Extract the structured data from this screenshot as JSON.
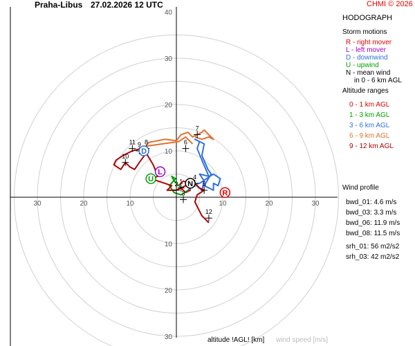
{
  "header": {
    "station": "Praha-Libus",
    "datetime": "27.02.2026 12 UTC",
    "copyright": "CHMI © 2026"
  },
  "panel": {
    "title": "HODOGRAPH",
    "storm_motions_title": "Storm motions",
    "storm_motions": [
      {
        "text": "R - right mover",
        "color": "#e00000"
      },
      {
        "text": "L - left mover",
        "color": "#a000c0"
      },
      {
        "text": "D - downwind",
        "color": "#3070e0"
      },
      {
        "text": "U - upwind",
        "color": "#00a000"
      },
      {
        "text": "N - mean wind",
        "color": "#000000"
      },
      {
        "text": "in 0 - 6 km AGL",
        "color": "#000000"
      }
    ],
    "altitude_title": "Altitude ranges",
    "altitude_ranges": [
      {
        "text": "0 - 1 km AGL",
        "color": "#e00000"
      },
      {
        "text": "1 - 3 km AGL",
        "color": "#00a000"
      },
      {
        "text": "3 - 6 km AGL",
        "color": "#3070e0"
      },
      {
        "text": "6 - 9 km AGL",
        "color": "#e07030"
      },
      {
        "text": "9 - 12 km AGL",
        "color": "#b00000"
      }
    ],
    "wind_profile_title": "Wind profile",
    "wind_profile": [
      "bwd_01: 4.6 m/s",
      "bwd_03: 3.3 m/s",
      "bwd_06: 11.9 m/s",
      "bwd_08: 11.5 m/s",
      "srh_01: 56 m2/s2",
      "srh_03: 42 m2/s2"
    ]
  },
  "footer": {
    "axis_label": "altitude !AGL! [km]",
    "speed_label": "wind speed [m/s]"
  },
  "chart_data": {
    "type": "line",
    "rings": [
      5,
      10,
      15,
      20,
      25,
      30,
      35
    ],
    "tick_labels": {
      "west": [
        "30",
        "20",
        "10"
      ],
      "east": [
        "10",
        "20",
        "30"
      ],
      "north": [
        "10",
        "20",
        "30",
        "40"
      ],
      "south": [
        "10",
        "20",
        "30"
      ]
    },
    "series": [
      {
        "color": "#e00000",
        "points": [
          [
            0.5,
            2.5
          ],
          [
            1.5,
            3.5
          ],
          [
            2.5,
            3.0
          ],
          [
            3.0,
            1.5
          ],
          [
            2.0,
            1.0
          ],
          [
            1.0,
            2.0
          ]
        ]
      },
      {
        "color": "#00a000",
        "points": [
          [
            1.0,
            2.0
          ],
          [
            -0.5,
            3.5
          ],
          [
            -1.0,
            4.5
          ],
          [
            -0.2,
            4.0
          ],
          [
            -1.5,
            2.5
          ],
          [
            -0.5,
            1.0
          ],
          [
            1.0,
            0.5
          ],
          [
            2.5,
            1.5
          ]
        ]
      },
      {
        "color": "#3070e0",
        "points": [
          [
            2.5,
            1.5
          ],
          [
            4.0,
            2.8
          ],
          [
            5.5,
            1.5
          ],
          [
            6.0,
            3.5
          ],
          [
            5.0,
            5.0
          ],
          [
            7.0,
            4.5
          ],
          [
            5.5,
            8.0
          ],
          [
            4.5,
            10.5
          ],
          [
            5.0,
            12.0
          ],
          [
            4.0,
            12.5
          ],
          [
            6.0,
            11.5
          ],
          [
            5.5,
            9.0
          ],
          [
            6.8,
            6.0
          ],
          [
            7.5,
            5.0
          ],
          [
            6.0,
            2.5
          ],
          [
            8.0,
            1.5
          ],
          [
            8.0,
            3.0
          ],
          [
            9.0,
            2.5
          ],
          [
            9.5,
            4.0
          ],
          [
            8.0,
            5.0
          ],
          [
            5.0,
            3.0
          ],
          [
            2.5,
            2.5
          ]
        ]
      },
      {
        "color": "#e07030",
        "points": [
          [
            3.5,
            11.5
          ],
          [
            2.0,
            13.0
          ],
          [
            0.5,
            12.0
          ],
          [
            -3.0,
            11.5
          ],
          [
            -6.5,
            11.0
          ],
          [
            -6.0,
            11.8
          ],
          [
            -2.5,
            12.5
          ],
          [
            0.0,
            12.2
          ],
          [
            1.0,
            13.5
          ],
          [
            2.5,
            14.0
          ],
          [
            3.5,
            13.0
          ],
          [
            5.5,
            14.0
          ],
          [
            6.0,
            14.5
          ],
          [
            7.0,
            13.5
          ],
          [
            8.0,
            12.5
          ],
          [
            7.0,
            13.0
          ],
          [
            5.5,
            12.5
          ],
          [
            4.0,
            13.0
          ]
        ]
      },
      {
        "color": "#b00000",
        "points": [
          [
            -7.5,
            10.5
          ],
          [
            -9.5,
            10.0
          ],
          [
            -11.5,
            9.0
          ],
          [
            -13.0,
            8.0
          ],
          [
            -13.5,
            7.0
          ],
          [
            -12.0,
            6.0
          ],
          [
            -11.0,
            7.5
          ],
          [
            -10.0,
            6.5
          ],
          [
            -9.0,
            6.0
          ],
          [
            -8.0,
            7.5
          ],
          [
            -6.5,
            9.5
          ],
          [
            -5.0,
            7.0
          ],
          [
            -4.0,
            4.5
          ],
          [
            -5.5,
            4.0
          ],
          [
            -4.0,
            3.5
          ],
          [
            -2.5,
            3.0
          ],
          [
            -1.0,
            2.5
          ],
          [
            -2.0,
            1.5
          ],
          [
            0.0,
            1.5
          ],
          [
            2.0,
            2.5
          ],
          [
            4.0,
            3.0
          ],
          [
            5.0,
            2.0
          ],
          [
            6.0,
            1.5
          ],
          [
            4.5,
            0.5
          ],
          [
            4.0,
            -1.0
          ],
          [
            4.5,
            -2.0
          ],
          [
            5.5,
            -4.0
          ],
          [
            7.0,
            -5.5
          ]
        ]
      }
    ],
    "level_markers": [
      {
        "label": "1",
        "x": 1.0,
        "y": 2.0
      },
      {
        "label": "2",
        "x": 0.0,
        "y": 1.5
      },
      {
        "label": "3",
        "x": 1.5,
        "y": -0.5
      },
      {
        "label": "4",
        "x": 4.0,
        "y": 3.0
      },
      {
        "label": "5",
        "x": 6.0,
        "y": 1.5
      },
      {
        "label": "6",
        "x": 2.0,
        "y": 10.5
      },
      {
        "label": "7",
        "x": 4.5,
        "y": 13.5
      },
      {
        "label": "8",
        "x": -6.5,
        "y": 10.5
      },
      {
        "label": "9",
        "x": -8.0,
        "y": 10.0
      },
      {
        "label": "10",
        "x": -11.0,
        "y": 7.5
      },
      {
        "label": "11",
        "x": -9.5,
        "y": 10.5
      },
      {
        "label": "12",
        "x": 7.0,
        "y": -4.5
      }
    ],
    "storm_motions": [
      {
        "label": "R",
        "x": 10.5,
        "y": 1.0,
        "color": "#e00000"
      },
      {
        "label": "L",
        "x": -3.5,
        "y": 5.5,
        "color": "#a000c0"
      },
      {
        "label": "D",
        "x": -7.0,
        "y": 10.0,
        "color": "#3070e0"
      },
      {
        "label": "U",
        "x": -5.5,
        "y": 4.0,
        "color": "#00a000"
      },
      {
        "label": "N",
        "x": 3.0,
        "y": 3.0,
        "color": "#000000"
      }
    ]
  }
}
